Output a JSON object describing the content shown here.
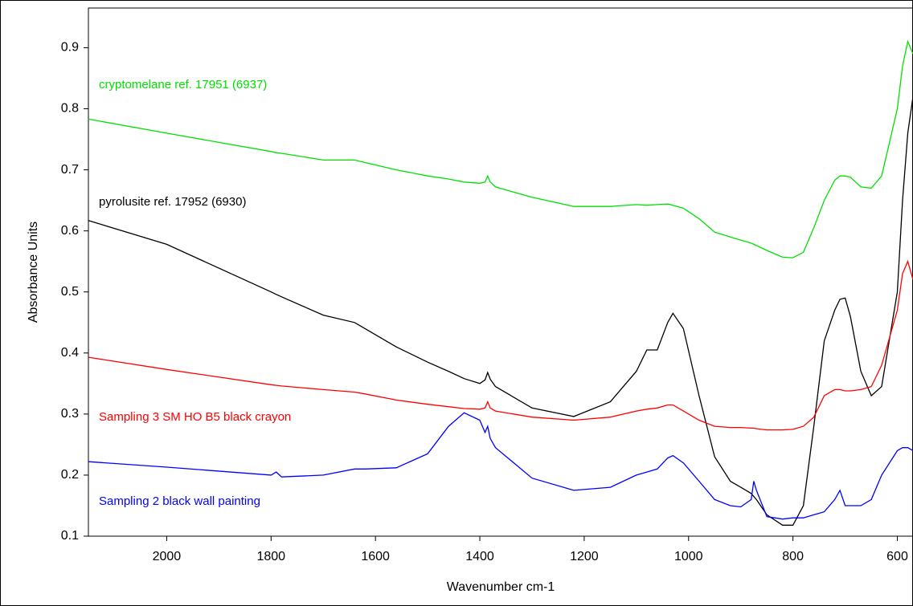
{
  "chart_data": {
    "type": "line",
    "x_label": "Wavenumber cm-1",
    "y_label": "Absorbance Units",
    "x": [
      2150,
      2000,
      1800,
      1790,
      1780,
      1700,
      1640,
      1620,
      1560,
      1500,
      1460,
      1430,
      1400,
      1390,
      1385,
      1380,
      1370,
      1300,
      1220,
      1150,
      1100,
      1080,
      1060,
      1040,
      1030,
      1010,
      980,
      950,
      920,
      900,
      880,
      875,
      870,
      850,
      820,
      800,
      780,
      760,
      740,
      720,
      710,
      700,
      690,
      670,
      650,
      630,
      600,
      590,
      580,
      570
    ],
    "series": [
      {
        "name": "cryptomelane ref. 17951 (6937)",
        "color": "#00e000",
        "values": [
          0.783,
          0.76,
          0.73,
          0.728,
          0.727,
          0.716,
          0.716,
          0.712,
          0.7,
          0.69,
          0.685,
          0.68,
          0.678,
          0.68,
          0.69,
          0.68,
          0.672,
          0.655,
          0.64,
          0.64,
          0.643,
          0.642,
          0.643,
          0.644,
          0.642,
          0.637,
          0.62,
          0.598,
          0.59,
          0.585,
          0.58,
          0.578,
          0.576,
          0.568,
          0.557,
          0.556,
          0.565,
          0.605,
          0.65,
          0.683,
          0.69,
          0.69,
          0.688,
          0.672,
          0.67,
          0.69,
          0.8,
          0.87,
          0.91,
          0.89
        ]
      },
      {
        "name": "pyrolusite ref. 17952 (6930)",
        "color": "#000000",
        "values": [
          0.617,
          0.578,
          0.5,
          0.496,
          0.492,
          0.462,
          0.45,
          0.44,
          0.41,
          0.385,
          0.37,
          0.358,
          0.35,
          0.356,
          0.368,
          0.357,
          0.345,
          0.31,
          0.296,
          0.32,
          0.37,
          0.405,
          0.405,
          0.45,
          0.465,
          0.44,
          0.33,
          0.23,
          0.19,
          0.18,
          0.17,
          0.165,
          0.16,
          0.135,
          0.118,
          0.118,
          0.15,
          0.28,
          0.42,
          0.47,
          0.488,
          0.49,
          0.46,
          0.37,
          0.33,
          0.345,
          0.5,
          0.65,
          0.76,
          0.82
        ]
      },
      {
        "name": "Sampling 3 SM HO B5 black crayon",
        "color": "#ff0000",
        "values": [
          0.393,
          0.373,
          0.348,
          0.347,
          0.346,
          0.34,
          0.336,
          0.333,
          0.323,
          0.316,
          0.312,
          0.309,
          0.308,
          0.31,
          0.32,
          0.31,
          0.305,
          0.295,
          0.29,
          0.295,
          0.305,
          0.308,
          0.31,
          0.315,
          0.315,
          0.305,
          0.29,
          0.28,
          0.278,
          0.278,
          0.277,
          0.277,
          0.276,
          0.274,
          0.274,
          0.275,
          0.28,
          0.295,
          0.33,
          0.34,
          0.34,
          0.338,
          0.338,
          0.34,
          0.345,
          0.38,
          0.47,
          0.53,
          0.55,
          0.52
        ]
      },
      {
        "name": "Sampling 2 black wall painting",
        "color": "#0000ff",
        "values": [
          0.222,
          0.213,
          0.2,
          0.205,
          0.197,
          0.2,
          0.21,
          0.21,
          0.212,
          0.235,
          0.28,
          0.302,
          0.29,
          0.27,
          0.28,
          0.26,
          0.245,
          0.195,
          0.175,
          0.18,
          0.2,
          0.205,
          0.21,
          0.228,
          0.232,
          0.22,
          0.19,
          0.16,
          0.15,
          0.148,
          0.16,
          0.19,
          0.175,
          0.132,
          0.128,
          0.13,
          0.13,
          0.135,
          0.14,
          0.16,
          0.175,
          0.15,
          0.15,
          0.15,
          0.16,
          0.2,
          0.24,
          0.245,
          0.245,
          0.24
        ]
      }
    ],
    "xlim": [
      2150,
      570
    ],
    "xticks": [
      2000,
      1800,
      1600,
      1400,
      1200,
      1000,
      800,
      600
    ],
    "ylim": [
      0.1,
      0.965
    ],
    "yticks": [
      0.1,
      0.2,
      0.3,
      0.4,
      0.5,
      0.6,
      0.7,
      0.8,
      0.9
    ]
  }
}
